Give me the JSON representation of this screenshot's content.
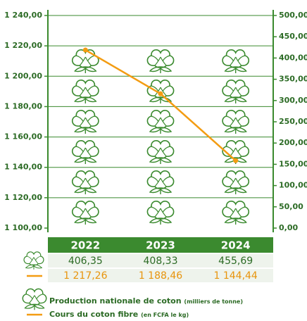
{
  "chart_data": {
    "type": "combo",
    "categories": [
      "2022",
      "2023",
      "2024"
    ],
    "series": [
      {
        "name": "Production nationale de coton",
        "unit": "(milliers de tonne)",
        "type": "pictograph",
        "axis": "y2",
        "color": "#3a8a2e",
        "values": [
          406.35,
          408.33,
          455.69
        ],
        "value_labels": [
          "406,35",
          "408,33",
          "455,69"
        ]
      },
      {
        "name": "Cours du coton fibre",
        "unit": "(en FCFA le kg)",
        "type": "line",
        "color": "#f39c12",
        "values": [
          1217.26,
          1188.46,
          1144.44
        ],
        "value_labels": [
          "1 217,26",
          "1 188,46",
          "1 144,44"
        ]
      }
    ],
    "ylim": [
      1100,
      1240
    ],
    "yticks": [
      {
        "value": 1100,
        "label": "1 100,00"
      },
      {
        "value": 1120,
        "label": "1 120,00"
      },
      {
        "value": 1140,
        "label": "1 140,00"
      },
      {
        "value": 1160,
        "label": "1 160,00"
      },
      {
        "value": 1180,
        "label": "1 180,00"
      },
      {
        "value": 1200,
        "label": "1 200,00"
      },
      {
        "value": 1220,
        "label": "1 220,00"
      },
      {
        "value": 1240,
        "label": "1 240,00"
      }
    ],
    "y2lim": [
      0,
      500
    ],
    "y2ticks": [
      {
        "value": 0,
        "label": "0,00"
      },
      {
        "value": 50,
        "label": "50,00"
      },
      {
        "value": 100,
        "label": "100,00"
      },
      {
        "value": 150,
        "label": "150,00"
      },
      {
        "value": 200,
        "label": "200,00"
      },
      {
        "value": 250,
        "label": "250,00"
      },
      {
        "value": 300,
        "label": "300,00"
      },
      {
        "value": 350,
        "label": "350,00"
      },
      {
        "value": 400,
        "label": "400,00"
      },
      {
        "value": 450,
        "label": "450,00"
      },
      {
        "value": 500,
        "label": "500,00"
      }
    ],
    "grid": true
  }
}
